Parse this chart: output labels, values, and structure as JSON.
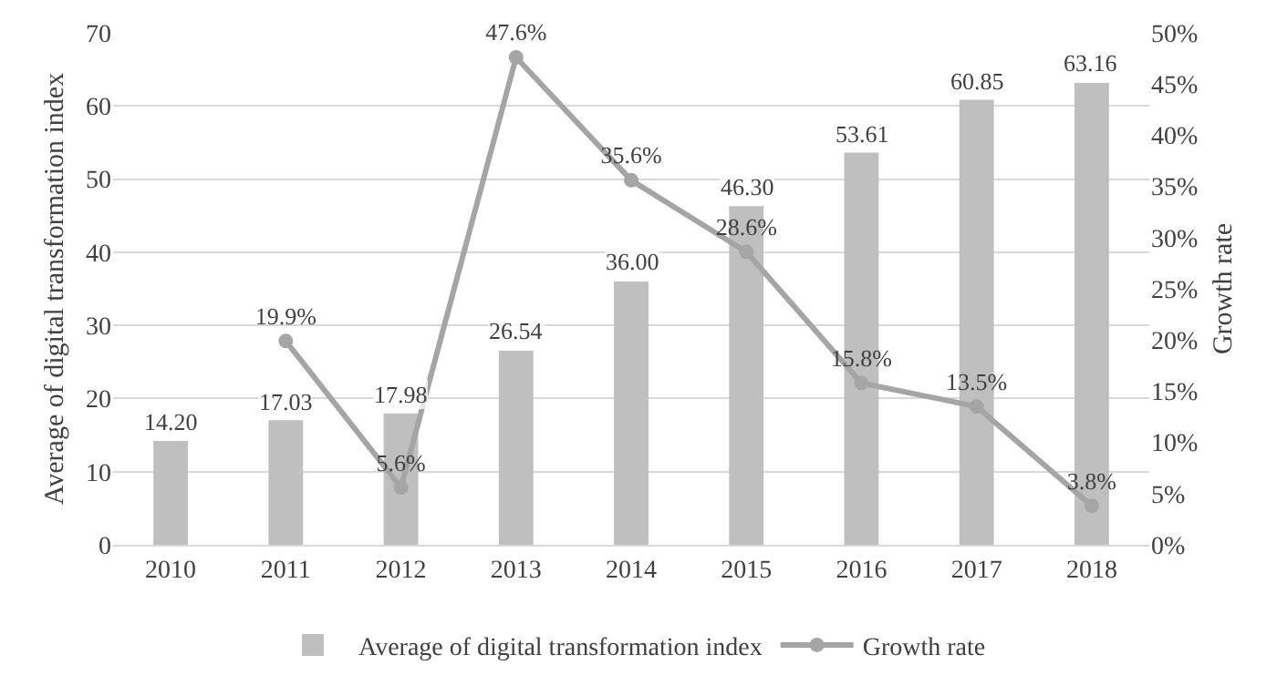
{
  "chart_data": {
    "type": "bar",
    "categories": [
      "2010",
      "2011",
      "2012",
      "2013",
      "2014",
      "2015",
      "2016",
      "2017",
      "2018"
    ],
    "series": [
      {
        "name": "Average of digital transformation index",
        "color": "#bfbfbf",
        "values": [
          14.2,
          17.03,
          17.98,
          26.54,
          36.0,
          46.3,
          53.61,
          60.85,
          63.16
        ],
        "value_labels": [
          "14.20",
          "17.03",
          "17.98",
          "26.54",
          "36.00",
          "46.30",
          "53.61",
          "60.85",
          "63.16"
        ]
      },
      {
        "name": "Growth rate",
        "type": "line",
        "axis": "y2",
        "color": "#a5a5a5",
        "marker": "circle",
        "line_style": "solid",
        "values": [
          null,
          19.9,
          5.6,
          47.6,
          35.6,
          28.6,
          15.8,
          13.5,
          3.8
        ],
        "value_labels": [
          null,
          "19.9%",
          "5.6%",
          "47.6%",
          "35.6%",
          "28.6%",
          "15.8%",
          "13.5%",
          "3.8%"
        ]
      }
    ],
    "ylabel": "Average of digital transformation index",
    "y2label": "Growth rate",
    "ylim": [
      0,
      70
    ],
    "yticks": [
      0,
      10,
      20,
      30,
      40,
      50,
      60,
      70
    ],
    "y2lim": [
      0,
      50
    ],
    "y2ticks": [
      {
        "value": 0,
        "label": "0%"
      },
      {
        "value": 5,
        "label": "5%"
      },
      {
        "value": 10,
        "label": "10%"
      },
      {
        "value": 15,
        "label": "15%"
      },
      {
        "value": 20,
        "label": "20%"
      },
      {
        "value": 25,
        "label": "25%"
      },
      {
        "value": 30,
        "label": "30%"
      },
      {
        "value": 35,
        "label": "35%"
      },
      {
        "value": 40,
        "label": "40%"
      },
      {
        "value": 45,
        "label": "45%"
      },
      {
        "value": 50,
        "label": "50%"
      }
    ],
    "grid": "y",
    "legend": "bottom"
  }
}
